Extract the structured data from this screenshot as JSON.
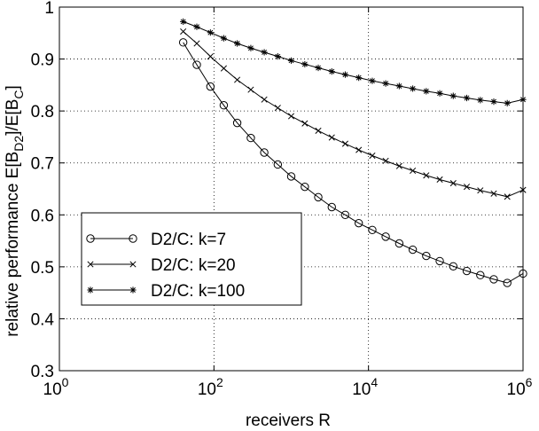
{
  "chart_data": {
    "type": "line",
    "xscale": "log",
    "xlim": [
      1,
      1000000
    ],
    "ylim": [
      0.3,
      1
    ],
    "xlabel": "receivers R",
    "ylabel": "relative performance E[B",
    "ylabel_sub1": "D2",
    "ylabel_mid": "]/E[B",
    "ylabel_sub2": "C",
    "ylabel_end": "]",
    "grid": true,
    "legend_position": "lower-left",
    "x_ticks": [
      {
        "value": 1,
        "base": "10",
        "exp": "0"
      },
      {
        "value": 100,
        "base": "10",
        "exp": "2"
      },
      {
        "value": 10000,
        "base": "10",
        "exp": "4"
      },
      {
        "value": 1000000,
        "base": "10",
        "exp": "6"
      }
    ],
    "y_ticks": [
      {
        "value": 0.3,
        "label": "0.3"
      },
      {
        "value": 0.4,
        "label": "0.4"
      },
      {
        "value": 0.5,
        "label": "0.5"
      },
      {
        "value": 0.6,
        "label": "0.6"
      },
      {
        "value": 0.7,
        "label": "0.7"
      },
      {
        "value": 0.8,
        "label": "0.8"
      },
      {
        "value": 0.9,
        "label": "0.9"
      },
      {
        "value": 1.0,
        "label": "1"
      }
    ],
    "x": [
      40,
      60,
      90,
      134,
      200,
      300,
      448,
      670,
      1000,
      1500,
      2240,
      3350,
      5000,
      7480,
      11200,
      16700,
      25000,
      37400,
      55900,
      83600,
      125000,
      187000,
      280000,
      418000,
      625000,
      1000000
    ],
    "series": [
      {
        "name": "D2/C: k=7",
        "marker": "circle",
        "values": [
          0.932,
          0.889,
          0.847,
          0.811,
          0.777,
          0.748,
          0.72,
          0.697,
          0.674,
          0.654,
          0.634,
          0.615,
          0.6,
          0.584,
          0.571,
          0.558,
          0.545,
          0.533,
          0.521,
          0.511,
          0.501,
          0.492,
          0.484,
          0.476,
          0.469,
          0.487
        ]
      },
      {
        "name": "D2/C: k=20",
        "marker": "x",
        "values": [
          0.953,
          0.93,
          0.905,
          0.882,
          0.86,
          0.841,
          0.822,
          0.806,
          0.79,
          0.776,
          0.762,
          0.749,
          0.737,
          0.725,
          0.714,
          0.704,
          0.694,
          0.685,
          0.676,
          0.668,
          0.661,
          0.654,
          0.647,
          0.641,
          0.635,
          0.648
        ]
      },
      {
        "name": "D2/C: k=100",
        "marker": "star",
        "values": [
          0.972,
          0.962,
          0.951,
          0.94,
          0.93,
          0.921,
          0.913,
          0.905,
          0.897,
          0.89,
          0.883,
          0.876,
          0.87,
          0.864,
          0.858,
          0.853,
          0.848,
          0.843,
          0.838,
          0.834,
          0.829,
          0.825,
          0.821,
          0.818,
          0.815,
          0.822
        ]
      }
    ]
  }
}
